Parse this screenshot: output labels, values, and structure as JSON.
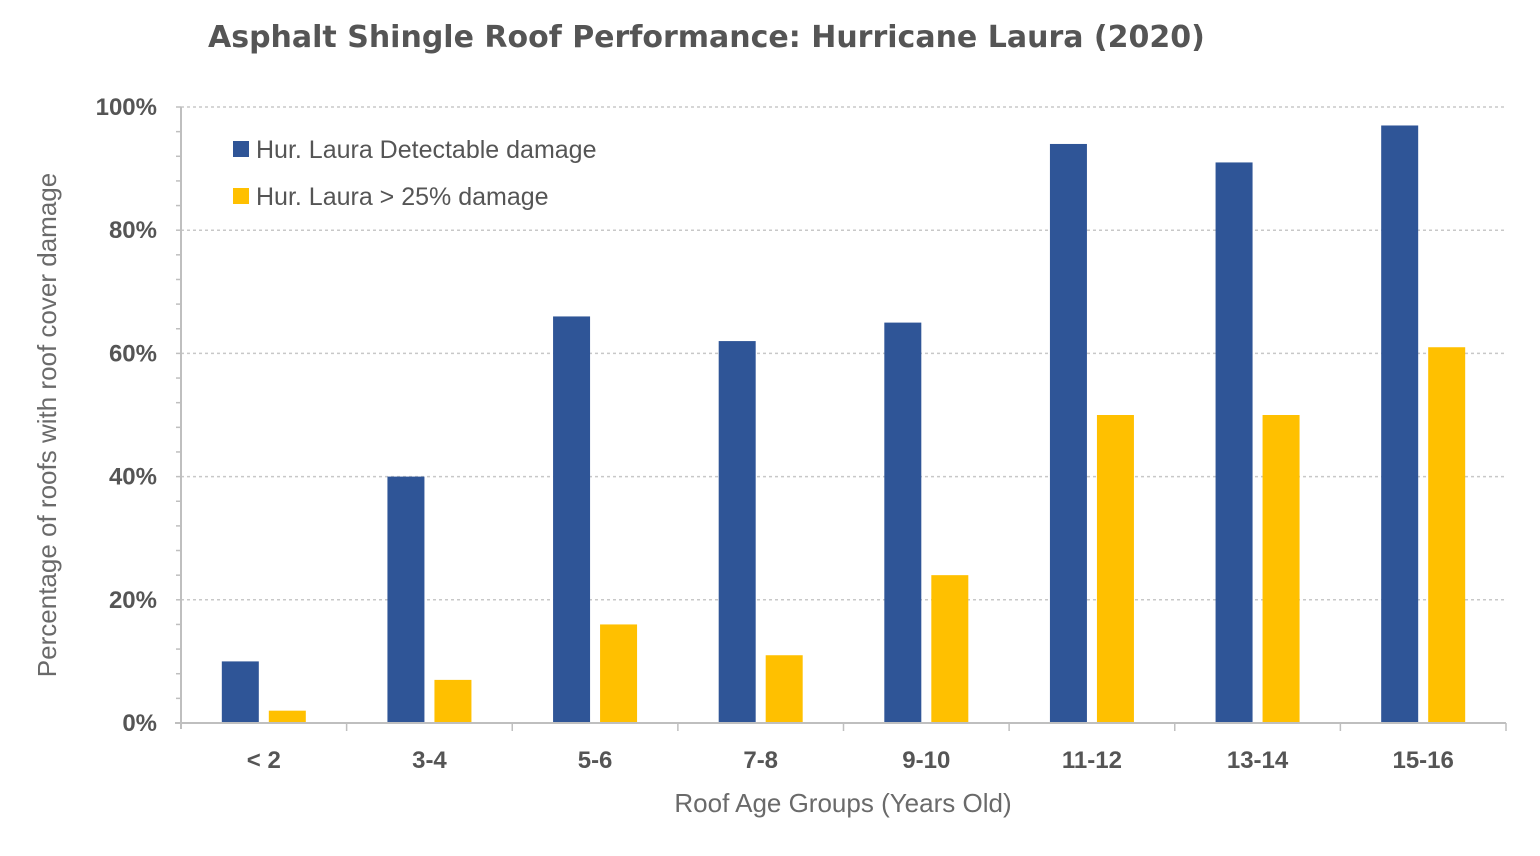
{
  "chart_data": {
    "type": "bar",
    "title": "Asphalt Shingle Roof Performance: Hurricane Laura (2020)",
    "xlabel": "Roof Age Groups (Years Old)",
    "ylabel": "Percentage of roofs with roof cover damage",
    "categories": [
      "< 2",
      "3-4",
      "5-6",
      "7-8",
      "9-10",
      "11-12",
      "13-14",
      "15-16"
    ],
    "series": [
      {
        "name": "Hur. Laura Detectable damage",
        "color": "#2F5597",
        "values": [
          10,
          40,
          66,
          62,
          65,
          94,
          91,
          97
        ]
      },
      {
        "name": "Hur. Laura > 25% damage",
        "color": "#FFC000",
        "values": [
          2,
          7,
          16,
          11,
          24,
          50,
          50,
          61
        ]
      }
    ],
    "ylim": [
      0,
      100
    ],
    "yticks": [
      0,
      20,
      40,
      60,
      80,
      100
    ],
    "ytick_labels": [
      "0%",
      "20%",
      "40%",
      "60%",
      "80%",
      "100%"
    ],
    "grid": true,
    "legend_position": "top-left"
  }
}
